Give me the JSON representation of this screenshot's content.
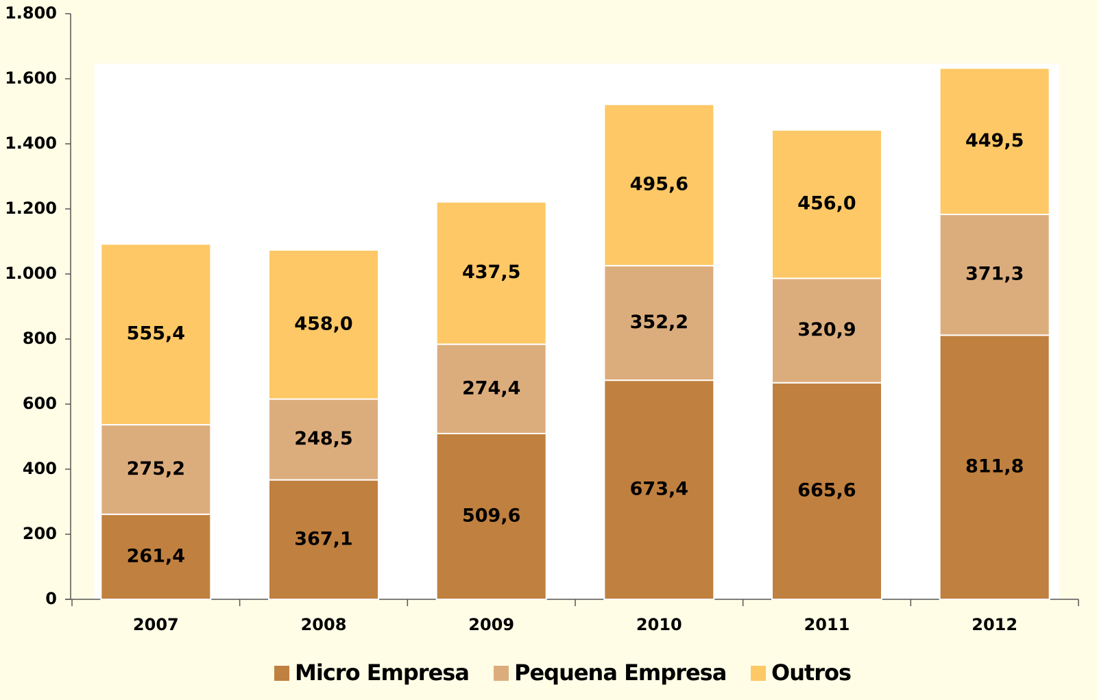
{
  "chart_data": {
    "type": "stacked_bar",
    "categories": [
      "2007",
      "2008",
      "2009",
      "2010",
      "2011",
      "2012"
    ],
    "series": [
      {
        "name": "Micro Empresa",
        "color": "#c0803f",
        "values": [
          261.4,
          367.1,
          509.6,
          673.4,
          665.6,
          811.8
        ],
        "value_labels": [
          "261,4",
          "367,1",
          "509,6",
          "673,4",
          "665,6",
          "811,8"
        ]
      },
      {
        "name": "Pequena Empresa",
        "color": "#dcad7c",
        "values": [
          275.2,
          248.5,
          274.4,
          352.2,
          320.9,
          371.3
        ],
        "value_labels": [
          "275,2",
          "248,5",
          "274,4",
          "352,2",
          "320,9",
          "371,3"
        ]
      },
      {
        "name": "Outros",
        "color": "#fdc865",
        "values": [
          555.4,
          458.0,
          437.5,
          495.6,
          456.0,
          449.5
        ],
        "value_labels": [
          "555,4",
          "458,0",
          "437,5",
          "495,6",
          "456,0",
          "449,5"
        ]
      }
    ],
    "ylim": [
      0,
      1800
    ],
    "yticks": [
      0,
      200,
      400,
      600,
      800,
      {
        "value": 1000,
        "label": "1.000"
      },
      {
        "value": 1200,
        "label": "1.200"
      },
      {
        "value": 1400,
        "label": "1.400"
      },
      {
        "value": 1600,
        "label": "1.600"
      },
      {
        "value": 1800,
        "label": "1.800"
      }
    ],
    "legend": "bottom"
  }
}
